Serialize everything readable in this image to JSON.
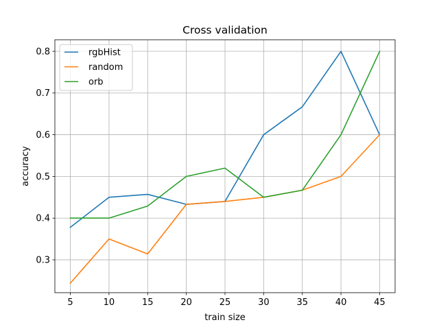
{
  "chart_data": {
    "type": "line",
    "title": "Cross validation",
    "xlabel": "train size",
    "ylabel": "accuracy",
    "x": [
      5,
      10,
      15,
      20,
      25,
      30,
      35,
      40,
      45
    ],
    "xticks": [
      "5",
      "10",
      "15",
      "20",
      "25",
      "30",
      "35",
      "40",
      "45"
    ],
    "yticks": [
      "0.3",
      "0.4",
      "0.5",
      "0.6",
      "0.7",
      "0.8"
    ],
    "ytick_values": [
      0.3,
      0.4,
      0.5,
      0.6,
      0.7,
      0.8
    ],
    "xlim": [
      3.0,
      47.0
    ],
    "ylim": [
      0.2212,
      0.8278
    ],
    "grid": true,
    "legend": "upper-left",
    "series": [
      {
        "name": "rgbHist",
        "color": "#1f77b4",
        "values": [
          0.378,
          0.45,
          0.457,
          0.433,
          0.44,
          0.6,
          0.667,
          0.8,
          0.6
        ]
      },
      {
        "name": "random",
        "color": "#ff7f0e",
        "values": [
          0.244,
          0.35,
          0.314,
          0.433,
          0.44,
          0.45,
          0.467,
          0.5,
          0.6
        ]
      },
      {
        "name": "orb",
        "color": "#2ca02c",
        "values": [
          0.4,
          0.4,
          0.429,
          0.5,
          0.52,
          0.45,
          0.467,
          0.6,
          0.8
        ]
      }
    ]
  }
}
